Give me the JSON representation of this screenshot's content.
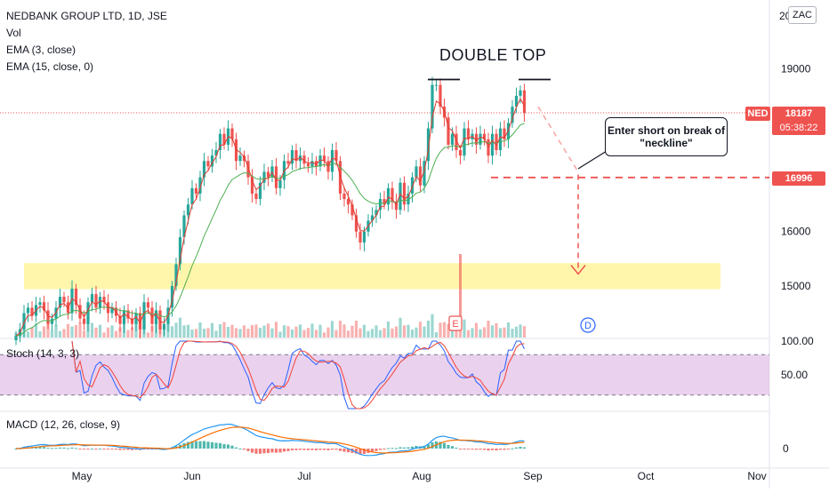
{
  "legend": {
    "symbol_line": "NEDBANK GROUP LTD, 1D, JSE",
    "vol": "Vol",
    "ema_short": "EMA (3, close)",
    "ema_long": "EMA (15, close, 0)"
  },
  "currency": "ZAC",
  "price_axis": {
    "ticks": [
      {
        "label": "19000",
        "value": 19000
      },
      {
        "label": "16000",
        "value": 16000
      },
      {
        "label": "15000",
        "value": 15000
      }
    ],
    "top_label": "20",
    "range": [
      14050,
      20100
    ]
  },
  "tags": {
    "symbol": "NED",
    "last_price": "18187",
    "last_price_value": 18187,
    "countdown": "05:38:22",
    "neckline": "16996",
    "neckline_value": 16996
  },
  "annotations": {
    "pattern_title": "DOUBLE TOP",
    "callout": "Enter short on break of \"neckline\"",
    "earnings_marker": "E",
    "dividend_marker": "D"
  },
  "support_zone": {
    "low": 14940,
    "high": 15420
  },
  "stoch": {
    "label": "Stoch (14, 3, 3)",
    "upper_level": 80,
    "lower_level": 20,
    "ticks": [
      "100.00",
      "50.00"
    ]
  },
  "macd": {
    "label": "MACD (12, 26, close, 9)",
    "ticks": [
      "0"
    ]
  },
  "time_axis": [
    "May",
    "Jun",
    "Jul",
    "Aug",
    "Sep",
    "Oct",
    "Nov"
  ],
  "colors": {
    "up": "#26a69a",
    "down": "#ef5350",
    "ema_fast": "#e03b2f",
    "ema_slow": "#4caf50",
    "support": "#fff59d",
    "stoch_band": "#e1bee7",
    "stoch_k": "#2962ff",
    "stoch_d": "#f44336",
    "macd_line": "#2196f3",
    "signal_line": "#ff6d00"
  },
  "chart_data": {
    "type": "candlestick",
    "closes": [
      14080,
      14200,
      14500,
      14600,
      14450,
      14650,
      14700,
      14550,
      14300,
      14400,
      14600,
      14800,
      14700,
      14500,
      14950,
      14650,
      14400,
      14300,
      14700,
      14850,
      14600,
      14800,
      14700,
      14500,
      14600,
      14450,
      14300,
      14550,
      14400,
      14300,
      14500,
      14200,
      14700,
      14600,
      14300,
      14550,
      14200,
      14300,
      14600,
      15000,
      15400,
      15900,
      16300,
      16500,
      16800,
      16700,
      17000,
      17300,
      17200,
      17400,
      17500,
      17800,
      17600,
      17900,
      17700,
      17300,
      17400,
      17300,
      17000,
      16700,
      16600,
      16900,
      17100,
      17000,
      17200,
      16800,
      16950,
      17300,
      17250,
      17500,
      17300,
      17400,
      17250,
      17200,
      17300,
      17200,
      17400,
      17300,
      17100,
      17500,
      17300,
      16700,
      16600,
      16500,
      16300,
      16000,
      15800,
      16000,
      16200,
      16300,
      16400,
      16600,
      16500,
      16800,
      16550,
      16400,
      16900,
      16500,
      16700,
      17000,
      17200,
      16850,
      17300,
      17900,
      18700,
      18700,
      18300,
      18100,
      17600,
      17800,
      17500,
      17400,
      17900,
      17700,
      17800,
      17600,
      17800,
      17700,
      17400,
      17800,
      17500,
      17900,
      17700,
      18000,
      18300,
      18500,
      18600,
      18187
    ]
  }
}
